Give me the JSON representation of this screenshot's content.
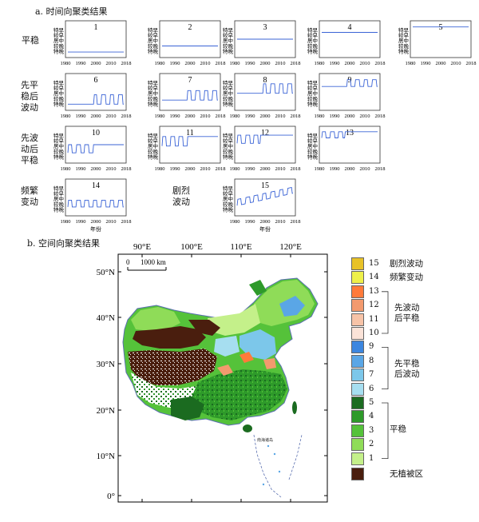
{
  "panel_a": {
    "title": "a. 时间向聚类结果",
    "y_levels": [
      "特早",
      "较早",
      "居中",
      "较晚",
      "特晚"
    ],
    "x_ticks": [
      "1980",
      "1990",
      "2000",
      "2010",
      "2018"
    ],
    "xlabel": "年份",
    "groups": [
      {
        "label": "平稳"
      },
      {
        "label": "先平稳后波动"
      },
      {
        "label": "先波动后平稳"
      },
      {
        "label": "频繁变动"
      },
      {
        "label": "剧烈波动"
      }
    ]
  },
  "chart_data": {
    "type": "line",
    "title": "a. 时间向聚类结果",
    "xlabel": "年份",
    "xlim": [
      1980,
      2018
    ],
    "y_categories": [
      "特早",
      "较早",
      "居中",
      "较晚",
      "特晚"
    ],
    "note_levels": "level 1 = 特晚 ... 5 = 特早",
    "panels": [
      {
        "id": "1",
        "pattern": "stable",
        "base": 1.1
      },
      {
        "id": "2",
        "pattern": "stable",
        "base": 2.0
      },
      {
        "id": "3",
        "pattern": "stable",
        "base": 3.0
      },
      {
        "id": "4",
        "pattern": "stable",
        "base": 4.0
      },
      {
        "id": "5",
        "pattern": "stable",
        "base": 4.8
      },
      {
        "id": "6",
        "pattern": "stable_then_fluctuate",
        "base": 1.2,
        "change_year": 1998,
        "amplitude": 1.4
      },
      {
        "id": "7",
        "pattern": "stable_then_fluctuate",
        "base": 1.8,
        "change_year": 1995,
        "amplitude": 1.4
      },
      {
        "id": "8",
        "pattern": "stable_then_fluctuate",
        "base": 2.8,
        "change_year": 1998,
        "amplitude": 1.4
      },
      {
        "id": "9",
        "pattern": "stable_then_fluctuate",
        "base": 3.8,
        "change_year": 1995,
        "amplitude": 1.0
      },
      {
        "id": "10",
        "pattern": "fluctuate_then_stable",
        "base": 1.8,
        "change_year": 1998,
        "amplitude": 1.2
      },
      {
        "id": "11",
        "pattern": "fluctuate_then_stable",
        "base": 2.8,
        "change_year": 1998,
        "amplitude": 1.4
      },
      {
        "id": "12",
        "pattern": "fluctuate_then_stable",
        "base": 3.2,
        "change_year": 1996,
        "amplitude": 1.2
      },
      {
        "id": "13",
        "pattern": "fluctuate_then_stable",
        "base": 4.0,
        "change_year": 1996,
        "amplitude": 0.9
      },
      {
        "id": "14",
        "pattern": "frequent",
        "base": 1.6,
        "amplitude": 1.0
      },
      {
        "id": "15",
        "pattern": "drastic",
        "base": 1.8,
        "amplitude": 2.6
      }
    ]
  },
  "panel_b": {
    "title": "b. 空间向聚类结果",
    "lon_ticks": [
      "90°E",
      "100°E",
      "110°E",
      "120°E"
    ],
    "lat_ticks": [
      "50°N",
      "40°N",
      "30°N",
      "20°N",
      "10°N",
      "0°"
    ],
    "scale_bar": {
      "zero": "0",
      "label": "1000 km"
    },
    "inset_labels": [
      "南海诸岛"
    ],
    "legend": {
      "classes": [
        {
          "id": "15",
          "color": "#e8c228"
        },
        {
          "id": "14",
          "color": "#eef04a"
        },
        {
          "id": "13",
          "color": "#ff7a3a"
        },
        {
          "id": "12",
          "color": "#f39a6e"
        },
        {
          "id": "11",
          "color": "#f7c3a7"
        },
        {
          "id": "10",
          "color": "#fbe3d8"
        },
        {
          "id": "9",
          "color": "#3c86df"
        },
        {
          "id": "8",
          "color": "#5aa6e6"
        },
        {
          "id": "7",
          "color": "#7cc7ea"
        },
        {
          "id": "6",
          "color": "#a6def0"
        },
        {
          "id": "5",
          "color": "#1b6b20"
        },
        {
          "id": "4",
          "color": "#2e9a2a"
        },
        {
          "id": "3",
          "color": "#55c23a"
        },
        {
          "id": "2",
          "color": "#8fdc58"
        },
        {
          "id": "1",
          "color": "#c4f08a"
        }
      ],
      "nonveg_color": "#4a1e0e",
      "group_labels": {
        "drastic": "剧烈波动",
        "frequent": "频繁变动",
        "fluct_stable": "先波动后平稳",
        "stable_fluct": "先平稳后波动",
        "stable": "平稳",
        "nonveg": "无植被区"
      }
    }
  },
  "colors": {
    "series": "#3a63d6",
    "axis": "#333333"
  }
}
